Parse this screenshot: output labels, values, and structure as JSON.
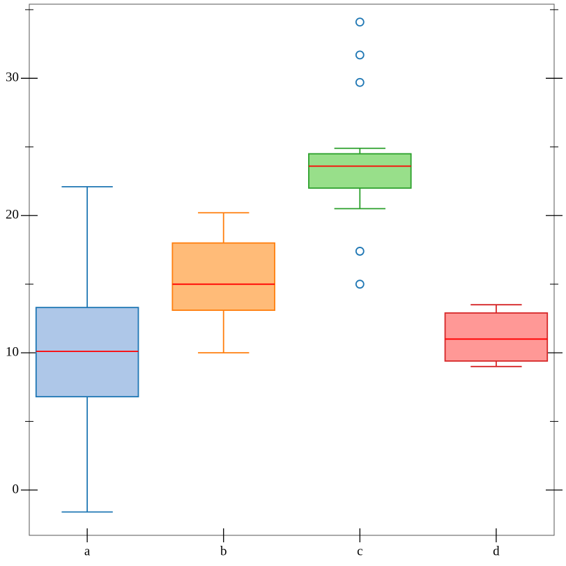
{
  "chart_data": {
    "type": "box",
    "categories": [
      "a",
      "b",
      "c",
      "d"
    ],
    "boxes": [
      {
        "whislo": -1.6,
        "q1": 6.8,
        "med": 10.1,
        "q3": 13.3,
        "whishi": 22.1,
        "fliers": [],
        "color": "#1f77b4",
        "fill": "#aec7e8"
      },
      {
        "whislo": 10.0,
        "q1": 13.1,
        "med": 15.0,
        "q3": 18.0,
        "whishi": 20.2,
        "fliers": [],
        "color": "#ff7f0e",
        "fill": "#ffbb78"
      },
      {
        "whislo": 20.5,
        "q1": 22.0,
        "med": 23.6,
        "q3": 24.5,
        "whishi": 24.9,
        "fliers": [
          34.1,
          31.7,
          29.7,
          17.4,
          15.0
        ],
        "color": "#2ca02c",
        "fill": "#98df8a"
      },
      {
        "whislo": 9.0,
        "q1": 9.4,
        "med": 11.0,
        "q3": 12.9,
        "whishi": 13.5,
        "fliers": [],
        "color": "#d62728",
        "fill": "#ff9896"
      }
    ],
    "median_color": "#ff0000",
    "flier_color": "#1f77b4",
    "ylim": [
      -3.3,
      35.4
    ],
    "yticks": [
      0,
      10,
      20,
      30
    ],
    "yminor_ticks": [
      5,
      15,
      25,
      35
    ]
  }
}
